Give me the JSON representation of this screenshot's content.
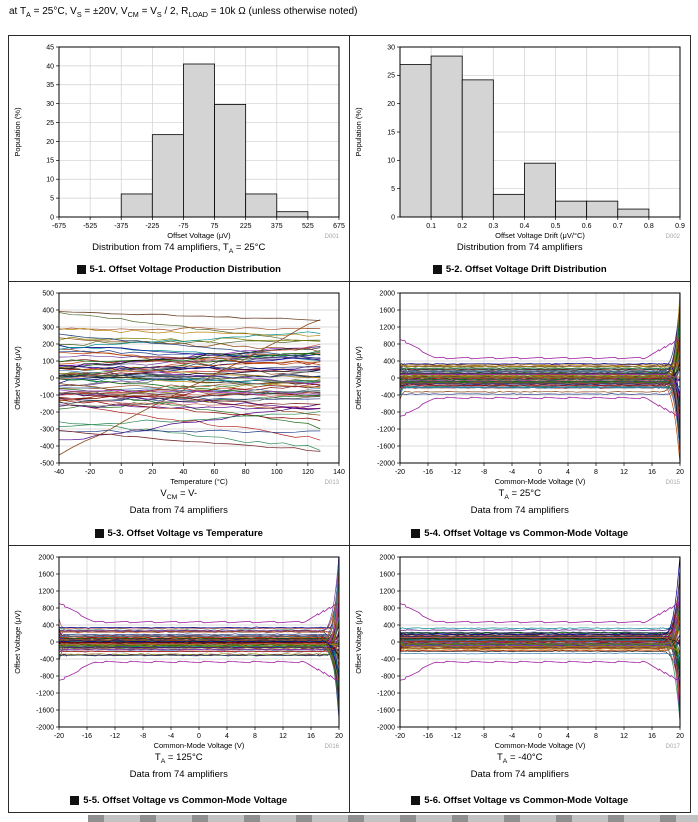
{
  "header": {
    "segments": [
      {
        "t": "at T"
      },
      {
        "t": "A",
        "sub": true
      },
      {
        "t": " = 25°C, V"
      },
      {
        "t": "S",
        "sub": true
      },
      {
        "t": " = ±20V, V"
      },
      {
        "t": "CM",
        "sub": true
      },
      {
        "t": " = V"
      },
      {
        "t": "S",
        "sub": true
      },
      {
        "t": " / 2, R"
      },
      {
        "t": "LOAD",
        "sub": true
      },
      {
        "t": " = 10k Ω  (unless otherwise noted)"
      }
    ]
  },
  "chart_settings": {
    "grid_color": "#cfcfcf",
    "frame_color": "#000000",
    "bar_fill": "#d4d4d4",
    "bar_stroke": "#000000",
    "code_color": "#a6a6a6",
    "trace_colors": [
      "#b22222",
      "#1f6e1f",
      "#27408b",
      "#8b4513",
      "#6a3d9a",
      "#008b8b",
      "#556b2f",
      "#c04000",
      "#203864",
      "#7b1d1d",
      "#2e8b57",
      "#4b0082",
      "#8b0000",
      "#006400",
      "#00008b",
      "#a0522d",
      "#5a5a5a",
      "#9932cc",
      "#2f4f4f",
      "#b8860b",
      "#1a1a1a",
      "#cd5c5c",
      "#4682b4",
      "#808000"
    ],
    "envelope_color": "#a020a0"
  },
  "chart_data": [
    {
      "id": "fig-5-1",
      "code": "D001",
      "type": "histogram",
      "title_glyph": "图",
      "title": "5-1. Offset Voltage Production Distribution",
      "captions": [
        [
          {
            "t": "Distribution from 74 amplifiers, T"
          },
          {
            "t": "A",
            "sub": true
          },
          {
            "t": " = 25°C"
          }
        ]
      ],
      "xlabel": "Offset Voltage (μV)",
      "ylabel": "Population (%)",
      "xlim": [
        -675,
        675
      ],
      "ylim": [
        0,
        45
      ],
      "x_ticks": [
        -675,
        -525,
        -375,
        -225,
        -75,
        75,
        225,
        375,
        525,
        675
      ],
      "y_ticks": [
        0,
        5,
        10,
        15,
        20,
        25,
        30,
        35,
        40,
        45
      ],
      "bin_width": 150,
      "values": [
        0,
        0,
        6.1,
        21.8,
        40.5,
        29.8,
        6.1,
        1.4,
        0
      ]
    },
    {
      "id": "fig-5-2",
      "code": "D002",
      "type": "histogram",
      "title_glyph": "图",
      "title": "5-2. Offset Voltage Drift Distribution",
      "captions": [
        [
          {
            "t": "Distribution from 74 amplifiers"
          }
        ]
      ],
      "xlabel": "Offset Voltage Drift (μV/°C)",
      "ylabel": "Population (%)",
      "xlim": [
        0,
        0.9
      ],
      "ylim": [
        0,
        30
      ],
      "x_ticks": [
        0.1,
        0.2,
        0.3,
        0.4,
        0.5,
        0.6,
        0.7,
        0.8,
        0.9
      ],
      "x_decimals": 1,
      "y_ticks": [
        0,
        5,
        10,
        15,
        20,
        25,
        30
      ],
      "bin_width": 0.1,
      "values": [
        26.9,
        28.4,
        24.2,
        4.0,
        9.5,
        2.8,
        2.8,
        1.4,
        0
      ]
    },
    {
      "id": "fig-5-3",
      "code": "D013",
      "type": "multiline",
      "profile": "temp",
      "seed": 13,
      "title_glyph": "图",
      "title": "5-3. Offset Voltage vs Temperature",
      "captions": [
        [
          {
            "t": "V"
          },
          {
            "t": "CM",
            "sub": true
          },
          {
            "t": " = V-"
          }
        ],
        [
          {
            "t": "Data from 74 amplifiers"
          }
        ]
      ],
      "xlabel": "Temperature (°C)",
      "ylabel": "Offset Voltage (μV)",
      "xlim": [
        -40,
        140
      ],
      "ylim": [
        -500,
        500
      ],
      "x_ticks": [
        -40,
        -20,
        0,
        20,
        40,
        60,
        80,
        100,
        120,
        140
      ],
      "y_ticks": [
        -500,
        -400,
        -300,
        -200,
        -100,
        0,
        100,
        200,
        300,
        400,
        500
      ],
      "traces": 74,
      "x_data_range": [
        -40,
        128
      ],
      "typical_band": [
        -320,
        320
      ]
    },
    {
      "id": "fig-5-4",
      "code": "D015",
      "type": "multiline",
      "profile": "cmv",
      "seed": 4,
      "title_glyph": "图",
      "title": "5-4. Offset Voltage vs Common-Mode Voltage",
      "captions": [
        [
          {
            "t": "T"
          },
          {
            "t": "A",
            "sub": true
          },
          {
            "t": " = 25°C"
          }
        ],
        [
          {
            "t": "Data from 74 amplifiers"
          }
        ]
      ],
      "xlabel": "Common-Mode Voltage (V)",
      "ylabel": "Offset Voltage (μV)",
      "xlim": [
        -20,
        20
      ],
      "ylim": [
        -2000,
        2000
      ],
      "x_ticks": [
        -20,
        -16,
        -12,
        -8,
        -4,
        0,
        4,
        8,
        12,
        16,
        20
      ],
      "y_ticks": [
        -2000,
        -1600,
        -1200,
        -800,
        -400,
        0,
        400,
        800,
        1200,
        1600,
        2000
      ],
      "traces": 74,
      "flat_band": [
        -380,
        380
      ],
      "edge_start": 17,
      "edge_divergence": 1900
    },
    {
      "id": "fig-5-5",
      "code": "D016",
      "type": "multiline",
      "profile": "cmv",
      "seed": 5,
      "title_glyph": "图",
      "title": "5-5. Offset Voltage vs Common-Mode Voltage",
      "captions": [
        [
          {
            "t": "T"
          },
          {
            "t": "A",
            "sub": true
          },
          {
            "t": " = 125°C"
          }
        ],
        [
          {
            "t": "Data from 74 amplifiers"
          }
        ]
      ],
      "xlabel": "Common-Mode Voltage (V)",
      "ylabel": "Offset Voltage (μV)",
      "xlim": [
        -20,
        20
      ],
      "ylim": [
        -2000,
        2000
      ],
      "x_ticks": [
        -20,
        -16,
        -12,
        -8,
        -4,
        0,
        4,
        8,
        12,
        16,
        20
      ],
      "y_ticks": [
        -2000,
        -1600,
        -1200,
        -800,
        -400,
        0,
        400,
        800,
        1200,
        1600,
        2000
      ],
      "traces": 74,
      "flat_band": [
        -380,
        380
      ],
      "edge_start": 17,
      "edge_divergence": 1900
    },
    {
      "id": "fig-5-6",
      "code": "D017",
      "type": "multiline",
      "profile": "cmv",
      "seed": 6,
      "title_glyph": "图",
      "title": "5-6. Offset Voltage vs Common-Mode Voltage",
      "captions": [
        [
          {
            "t": "T"
          },
          {
            "t": "A",
            "sub": true
          },
          {
            "t": " = -40°C"
          }
        ],
        [
          {
            "t": "Data from 74 amplifiers"
          }
        ]
      ],
      "xlabel": "Common-Mode Voltage (V)",
      "ylabel": "Offset Voltage (μV)",
      "xlim": [
        -20,
        20
      ],
      "ylim": [
        -2000,
        2000
      ],
      "x_ticks": [
        -20,
        -16,
        -12,
        -8,
        -4,
        0,
        4,
        8,
        12,
        16,
        20
      ],
      "y_ticks": [
        -2000,
        -1600,
        -1200,
        -800,
        -400,
        0,
        400,
        800,
        1200,
        1600,
        2000
      ],
      "traces": 74,
      "flat_band": [
        -380,
        380
      ],
      "edge_start": 17,
      "edge_divergence": 1900
    }
  ]
}
